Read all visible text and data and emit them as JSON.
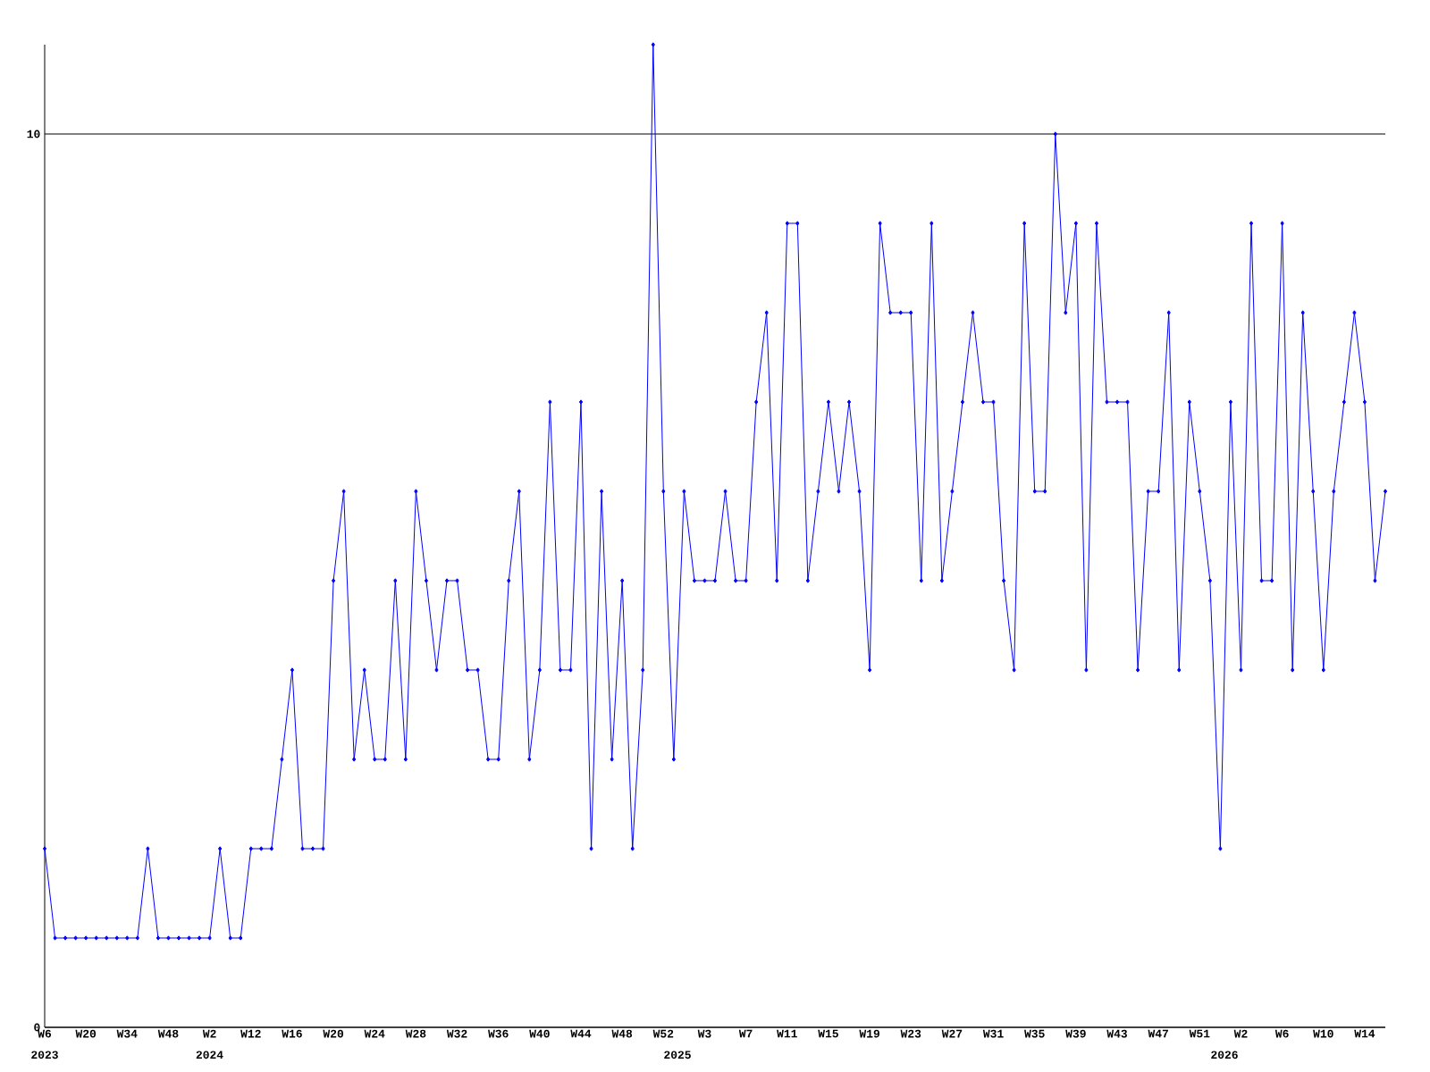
{
  "chart_data": {
    "type": "line",
    "categories": [
      "W6",
      null,
      null,
      null,
      "W20",
      null,
      null,
      null,
      "W34",
      null,
      null,
      null,
      "W48",
      null,
      null,
      null,
      "W2",
      null,
      null,
      null,
      "W12",
      null,
      null,
      null,
      "W16",
      null,
      null,
      null,
      "W20",
      null,
      null,
      null,
      "W24",
      null,
      null,
      null,
      "W28",
      null,
      null,
      null,
      "W32",
      null,
      null,
      null,
      "W36",
      null,
      null,
      null,
      "W40",
      null,
      null,
      null,
      "W44",
      null,
      null,
      null,
      "W48",
      null,
      null,
      null,
      "W52",
      null,
      null,
      null,
      "W3",
      null,
      null,
      null,
      "W7",
      null,
      null,
      null,
      "W11",
      null,
      null,
      null,
      "W15",
      null,
      null,
      null,
      "W19",
      null,
      null,
      null,
      "W23",
      null,
      null,
      null,
      "W27",
      null,
      null,
      null,
      "W31",
      null,
      null,
      null,
      "W35",
      null,
      null,
      null,
      "W39",
      null,
      null,
      null,
      "W43",
      null,
      null,
      null,
      "W47",
      null,
      null,
      null,
      "W51",
      null,
      null,
      null,
      "W2",
      null,
      null,
      null,
      "W6",
      null,
      null,
      null,
      "W10",
      null,
      null,
      null,
      "W14",
      null,
      null
    ],
    "values": [
      2,
      1,
      1,
      1,
      1,
      1,
      1,
      1,
      1,
      1,
      2,
      1,
      1,
      1,
      1,
      1,
      1,
      2,
      1,
      1,
      2,
      2,
      2,
      3,
      4,
      2,
      2,
      2,
      5,
      6,
      3,
      4,
      3,
      3,
      5,
      3,
      6,
      5,
      4,
      5,
      5,
      4,
      4,
      3,
      3,
      5,
      6,
      3,
      4,
      7,
      4,
      4,
      7,
      2,
      6,
      3,
      5,
      2,
      4,
      11,
      6,
      3,
      6,
      5,
      5,
      5,
      6,
      5,
      5,
      7,
      8,
      5,
      9,
      9,
      5,
      6,
      7,
      6,
      7,
      6,
      4,
      9,
      8,
      8,
      8,
      5,
      9,
      5,
      6,
      7,
      8,
      7,
      7,
      5,
      4,
      9,
      6,
      6,
      10,
      8,
      9,
      4,
      9,
      7,
      7,
      7,
      4,
      6,
      6,
      8,
      4,
      7,
      6,
      5,
      2,
      7,
      4,
      9,
      5,
      5,
      9,
      4,
      8,
      6,
      4,
      6,
      7,
      8,
      7,
      5,
      6
    ],
    "color": "#0000ff",
    "ylim": [
      0,
      11
    ],
    "yticks": [
      0,
      10
    ],
    "grid": "y",
    "marker": "diamond",
    "annotations": [
      "2023",
      "2024",
      "2025",
      "2026"
    ]
  }
}
